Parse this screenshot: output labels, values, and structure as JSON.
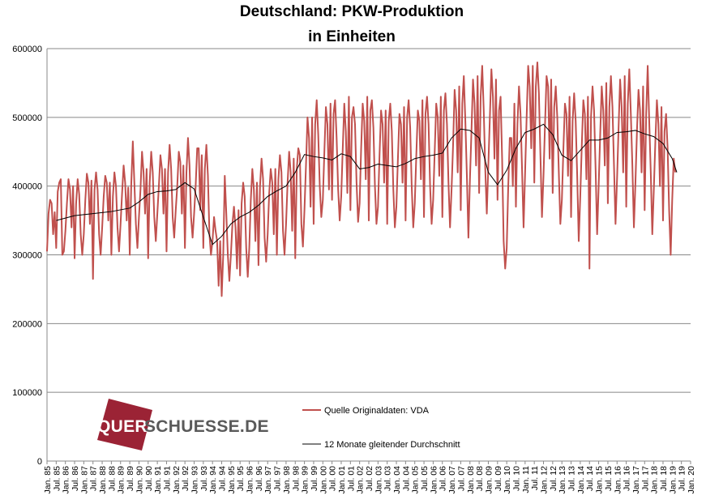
{
  "chart_data": {
    "type": "line",
    "title": "Deutschland:  PKW-Produktion",
    "subtitle": "in Einheiten",
    "xlabel": "",
    "ylabel": "",
    "ylim": [
      0,
      600000
    ],
    "yticks": [
      0,
      100000,
      200000,
      300000,
      400000,
      500000,
      600000
    ],
    "ytick_labels": [
      "0",
      "100000",
      "200000",
      "300000",
      "400000",
      "500000",
      "600000"
    ],
    "xlim": [
      "1985-01",
      "2020-01"
    ],
    "grid": "horizontal",
    "legend_position": "bottom-center",
    "colors": {
      "series_raw": "#c0504d",
      "series_avg": "#000000",
      "grid": "#888888"
    },
    "x_tick_labels": [
      "Jan. 85",
      "Jul. 85",
      "Jan. 86",
      "Jul. 86",
      "Jan. 87",
      "Jul. 87",
      "Jan. 88",
      "Jul. 88",
      "Jan. 89",
      "Jul. 89",
      "Jan. 90",
      "Jul. 90",
      "Jan. 91",
      "Jul. 91",
      "Jan. 92",
      "Jul. 92",
      "Jan. 93",
      "Jul. 93",
      "Jan. 94",
      "Jul. 94",
      "Jan. 95",
      "Jul. 95",
      "Jan. 96",
      "Jul. 96",
      "Jan. 97",
      "Jul. 97",
      "Jan. 98",
      "Jul. 98",
      "Jan. 99",
      "Jul. 99",
      "Jan. 00",
      "Jul. 00",
      "Jan. 01",
      "Jul. 01",
      "Jan. 02",
      "Jul. 02",
      "Jan. 03",
      "Jul. 03",
      "Jan. 04",
      "Jul. 04",
      "Jan. 05",
      "Jul. 05",
      "Jan. 06",
      "Jul. 06",
      "Jan. 07",
      "Jul. 07",
      "Jan. 08",
      "Jul. 08",
      "Jan. 09",
      "Jul. 09",
      "Jan. 10",
      "Jul. 10",
      "Jan. 11",
      "Jul. 11",
      "Jan. 12",
      "Jul. 12",
      "Jan. 13",
      "Jul. 13",
      "Jan. 14",
      "Jul. 14",
      "Jan. 15",
      "Jul. 15",
      "Jan. 16",
      "Jul. 16",
      "Jan. 17",
      "Jul. 17",
      "Jan. 18",
      "Jul. 18",
      "Jan. 19",
      "Jul. 19",
      "Jan. 20"
    ],
    "series": [
      {
        "name": "Quelle Originaldaten: VDA",
        "x_start": "1985-01",
        "frequency": "monthly",
        "values": [
          305000,
          360000,
          380000,
          375000,
          330000,
          362000,
          310000,
          392000,
          405000,
          410000,
          300000,
          305000,
          335000,
          375000,
          410000,
          395000,
          340000,
          400000,
          295000,
          375000,
          410000,
          388000,
          330000,
          300000,
          330000,
          380000,
          418000,
          405000,
          345000,
          408000,
          265000,
          395000,
          420000,
          395000,
          330000,
          300000,
          340000,
          385000,
          415000,
          405000,
          350000,
          405000,
          300000,
          385000,
          420000,
          400000,
          340000,
          305000,
          345000,
          390000,
          430000,
          405000,
          350000,
          398000,
          300000,
          405000,
          465000,
          405000,
          345000,
          310000,
          355000,
          395000,
          450000,
          420000,
          360000,
          425000,
          295000,
          405000,
          450000,
          420000,
          355000,
          320000,
          360000,
          400000,
          445000,
          425000,
          360000,
          425000,
          305000,
          420000,
          460000,
          425000,
          355000,
          325000,
          365000,
          400000,
          450000,
          435000,
          360000,
          430000,
          310000,
          420000,
          470000,
          430000,
          355000,
          325000,
          360000,
          400000,
          455000,
          455000,
          365000,
          445000,
          310000,
          425000,
          460000,
          415000,
          330000,
          300000,
          320000,
          355000,
          335000,
          320000,
          255000,
          320000,
          240000,
          300000,
          415000,
          360000,
          300000,
          262000,
          300000,
          345000,
          370000,
          340000,
          280000,
          365000,
          270000,
          375000,
          405000,
          385000,
          310000,
          268000,
          310000,
          380000,
          425000,
          395000,
          320000,
          405000,
          285000,
          400000,
          440000,
          410000,
          325000,
          290000,
          330000,
          390000,
          425000,
          405000,
          330000,
          425000,
          300000,
          410000,
          445000,
          420000,
          335000,
          300000,
          345000,
          405000,
          450000,
          420000,
          335000,
          440000,
          295000,
          425000,
          455000,
          445000,
          345000,
          312000,
          365000,
          430000,
          500000,
          470000,
          370000,
          500000,
          345000,
          490000,
          525000,
          475000,
          400000,
          355000,
          380000,
          450000,
          515000,
          490000,
          395000,
          520000,
          380000,
          505000,
          525000,
          470000,
          395000,
          350000,
          385000,
          455000,
          520000,
          480000,
          390000,
          530000,
          365000,
          500000,
          515000,
          490000,
          405000,
          348000,
          375000,
          455000,
          520000,
          495000,
          410000,
          530000,
          350000,
          510000,
          525000,
          485000,
          400000,
          345000,
          370000,
          445000,
          510000,
          490000,
          405000,
          510000,
          345000,
          495000,
          520000,
          480000,
          395000,
          340000,
          370000,
          440000,
          505000,
          490000,
          405000,
          515000,
          350000,
          500000,
          525000,
          485000,
          400000,
          340000,
          375000,
          445000,
          510000,
          495000,
          410000,
          525000,
          355000,
          505000,
          530000,
          490000,
          400000,
          345000,
          380000,
          450000,
          520000,
          500000,
          415000,
          530000,
          355000,
          510000,
          535000,
          490000,
          405000,
          340000,
          395000,
          460000,
          540000,
          510000,
          420000,
          545000,
          365000,
          520000,
          560000,
          495000,
          415000,
          325000,
          410000,
          480000,
          555000,
          520000,
          430000,
          560000,
          390000,
          530000,
          575000,
          510000,
          425000,
          360000,
          430000,
          500000,
          570000,
          530000,
          440000,
          555000,
          380000,
          510000,
          530000,
          440000,
          320000,
          280000,
          310000,
          400000,
          470000,
          470000,
          400000,
          520000,
          370000,
          490000,
          545000,
          505000,
          425000,
          340000,
          420000,
          500000,
          575000,
          545000,
          455000,
          575000,
          405000,
          545000,
          580000,
          535000,
          445000,
          355000,
          415000,
          490000,
          560000,
          545000,
          440000,
          555000,
          390000,
          515000,
          545000,
          500000,
          420000,
          345000,
          380000,
          455000,
          520000,
          505000,
          415000,
          530000,
          355000,
          495000,
          535000,
          495000,
          415000,
          320000,
          385000,
          460000,
          525000,
          505000,
          410000,
          530000,
          280000,
          500000,
          545000,
          510000,
          425000,
          330000,
          400000,
          475000,
          545000,
          510000,
          430000,
          550000,
          375000,
          515000,
          560000,
          515000,
          430000,
          345000,
          410000,
          485000,
          555000,
          515000,
          420000,
          560000,
          370000,
          520000,
          570000,
          505000,
          430000,
          340000,
          405000,
          480000,
          540000,
          510000,
          420000,
          545000,
          365000,
          505000,
          575000,
          495000,
          420000,
          330000,
          395000,
          465000,
          525000,
          490000,
          400000,
          515000,
          350000,
          480000,
          505000,
          455000,
          365000,
          300000,
          380000,
          440000,
          420000
        ]
      },
      {
        "name": "12 Monate gleitender Durchschnitt",
        "anchors": [
          [
            "1985-07",
            350000
          ],
          [
            "1986-07",
            357000
          ],
          [
            "1987-07",
            360000
          ],
          [
            "1988-07",
            363000
          ],
          [
            "1989-07",
            368000
          ],
          [
            "1990-01",
            377000
          ],
          [
            "1990-07",
            388000
          ],
          [
            "1991-01",
            392000
          ],
          [
            "1991-07",
            393000
          ],
          [
            "1992-01",
            395000
          ],
          [
            "1992-07",
            405000
          ],
          [
            "1993-01",
            396000
          ],
          [
            "1993-07",
            355000
          ],
          [
            "1994-01",
            315000
          ],
          [
            "1994-07",
            327000
          ],
          [
            "1995-01",
            345000
          ],
          [
            "1995-07",
            355000
          ],
          [
            "1996-01",
            362000
          ],
          [
            "1996-07",
            372000
          ],
          [
            "1997-01",
            385000
          ],
          [
            "1997-07",
            393000
          ],
          [
            "1998-01",
            400000
          ],
          [
            "1998-07",
            420000
          ],
          [
            "1999-01",
            446000
          ],
          [
            "1999-07",
            443000
          ],
          [
            "2000-01",
            441000
          ],
          [
            "2000-07",
            438000
          ],
          [
            "2001-01",
            447000
          ],
          [
            "2001-07",
            443000
          ],
          [
            "2002-01",
            425000
          ],
          [
            "2002-07",
            427000
          ],
          [
            "2003-01",
            432000
          ],
          [
            "2003-07",
            430000
          ],
          [
            "2004-01",
            428000
          ],
          [
            "2004-07",
            433000
          ],
          [
            "2005-01",
            440000
          ],
          [
            "2005-07",
            443000
          ],
          [
            "2006-01",
            445000
          ],
          [
            "2006-07",
            448000
          ],
          [
            "2007-01",
            470000
          ],
          [
            "2007-07",
            483000
          ],
          [
            "2008-01",
            481000
          ],
          [
            "2008-07",
            470000
          ],
          [
            "2009-01",
            420000
          ],
          [
            "2009-07",
            402000
          ],
          [
            "2010-01",
            423000
          ],
          [
            "2010-07",
            455000
          ],
          [
            "2011-01",
            478000
          ],
          [
            "2011-07",
            483000
          ],
          [
            "2012-01",
            490000
          ],
          [
            "2012-07",
            475000
          ],
          [
            "2013-01",
            445000
          ],
          [
            "2013-07",
            437000
          ],
          [
            "2014-01",
            452000
          ],
          [
            "2014-07",
            467000
          ],
          [
            "2015-01",
            467000
          ],
          [
            "2015-07",
            470000
          ],
          [
            "2016-01",
            478000
          ],
          [
            "2016-07",
            479000
          ],
          [
            "2017-01",
            481000
          ],
          [
            "2017-07",
            476000
          ],
          [
            "2018-01",
            472000
          ],
          [
            "2018-07",
            462000
          ],
          [
            "2019-01",
            440000
          ],
          [
            "2019-04",
            420000
          ]
        ]
      }
    ]
  },
  "logo": {
    "brand": "QUERSCHUESSE.DE"
  }
}
